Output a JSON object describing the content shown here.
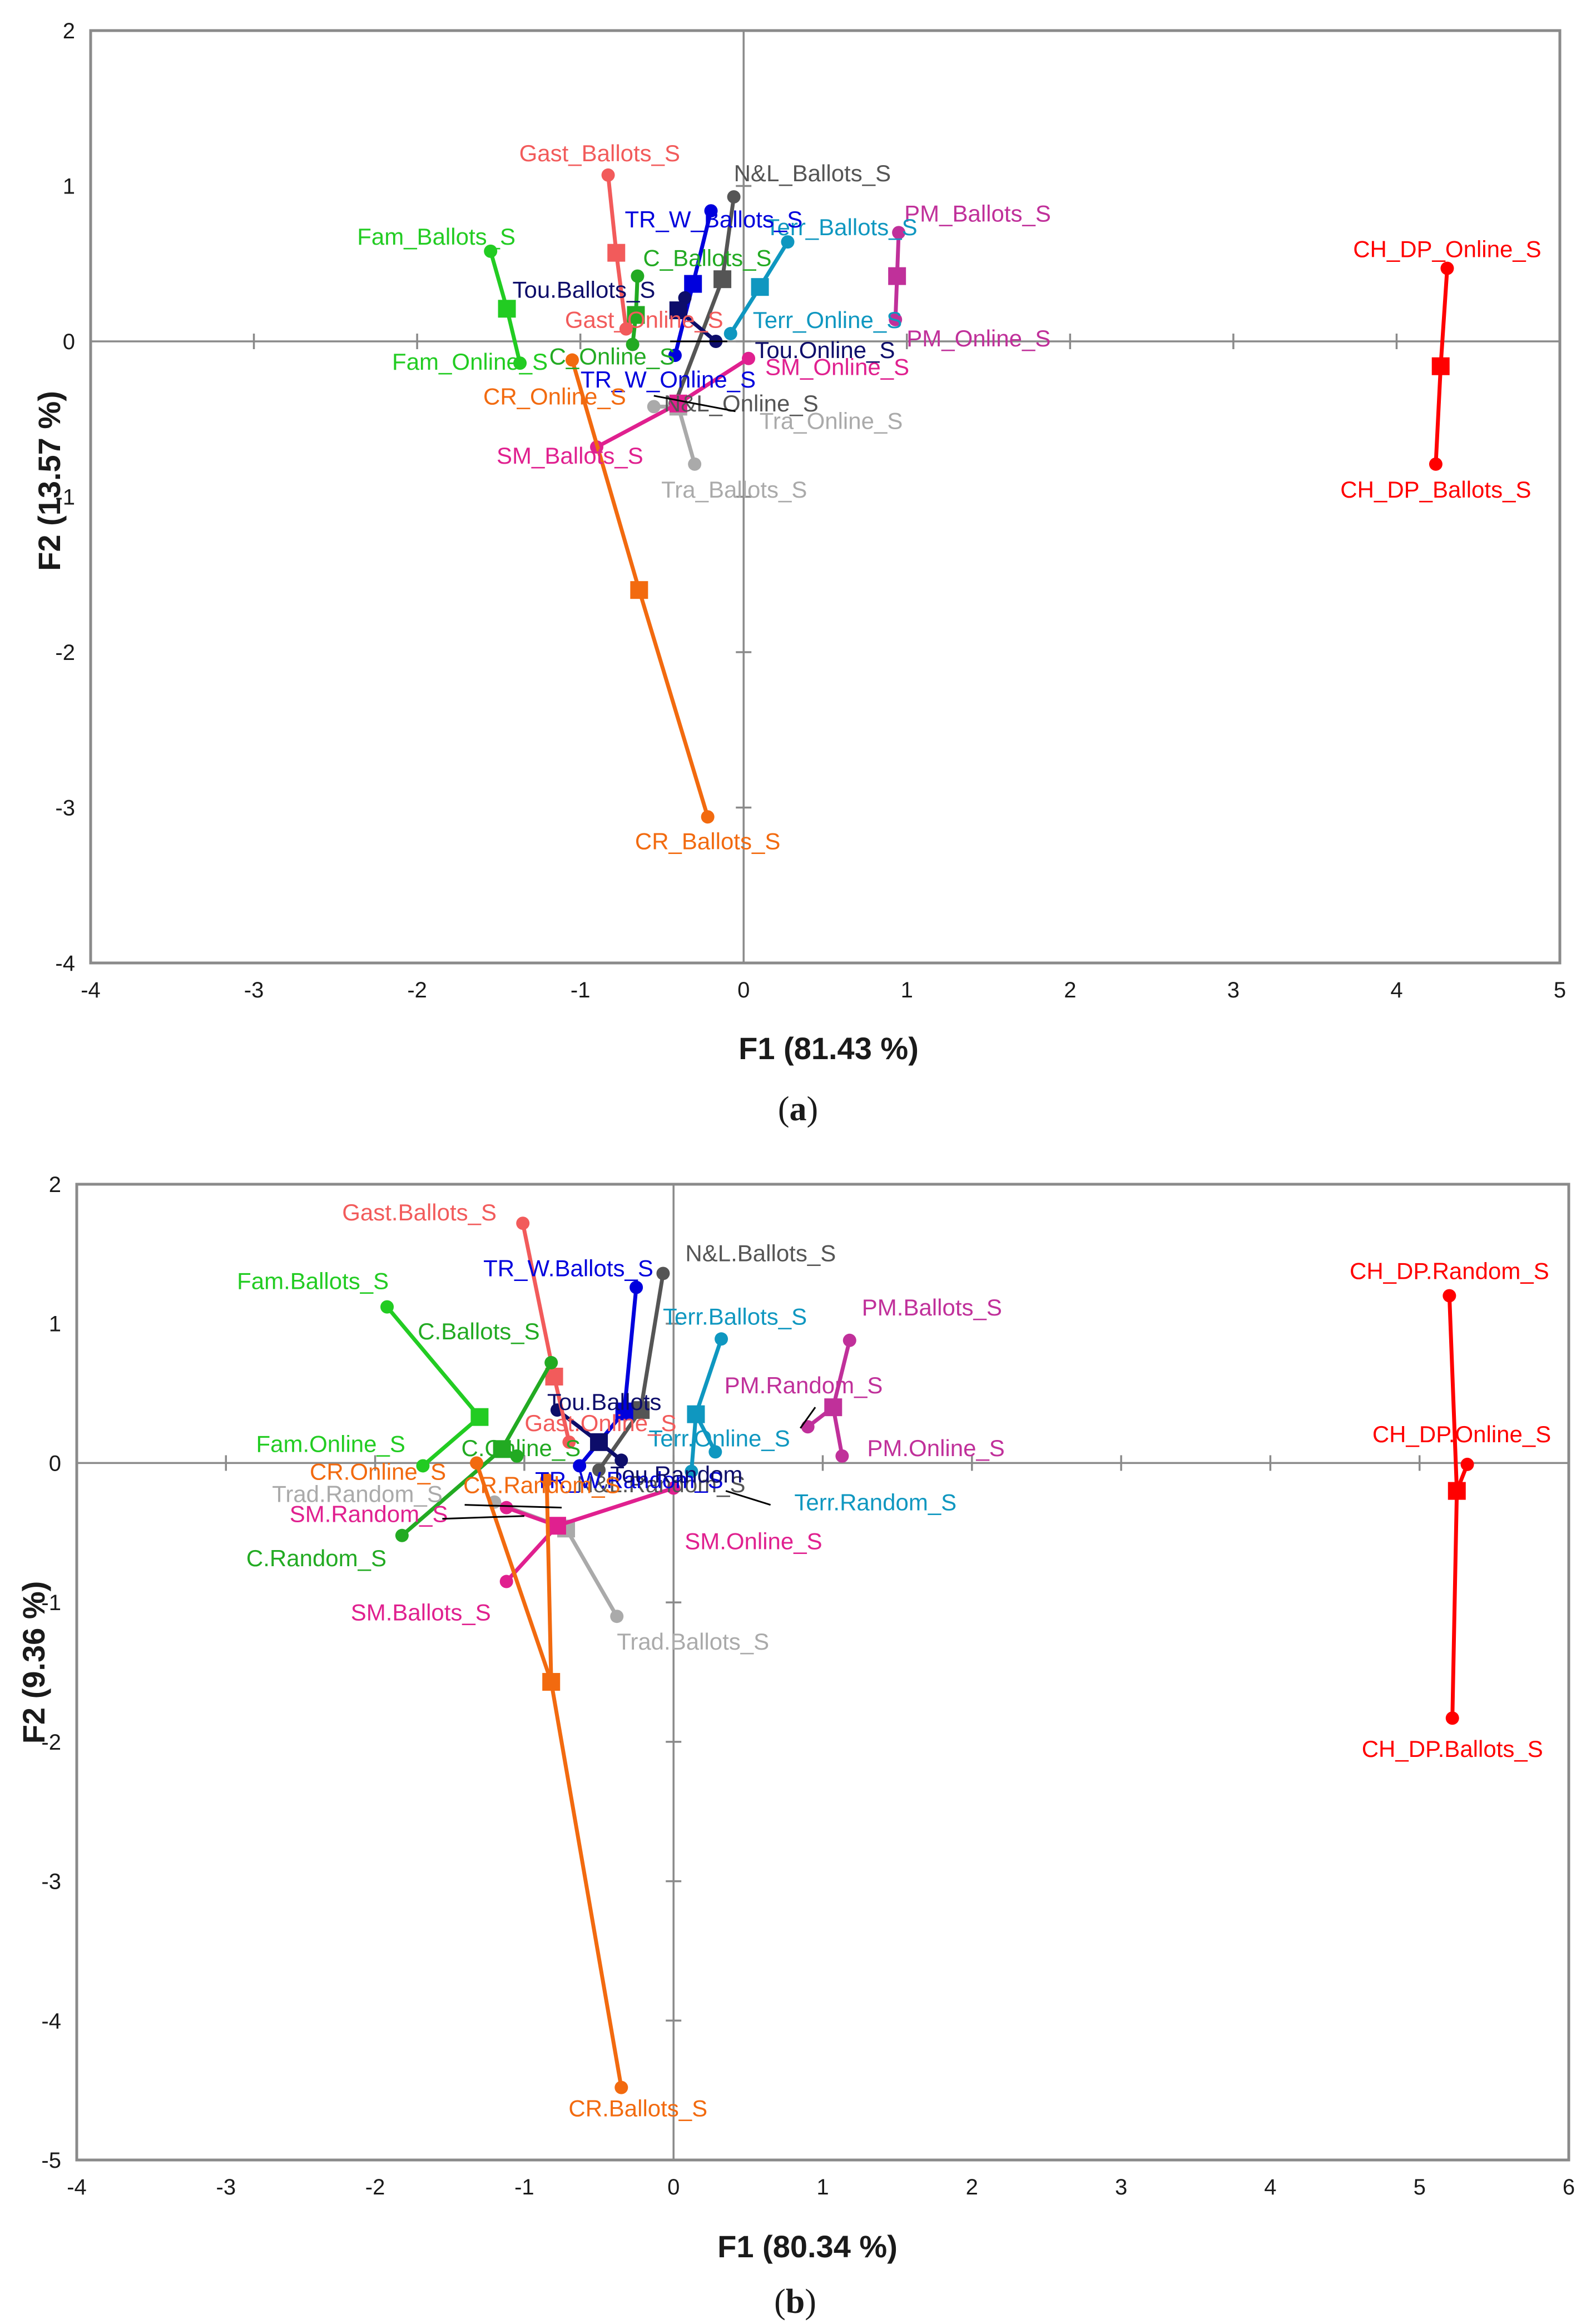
{
  "chart_data": [
    {
      "type": "scatter",
      "panel_label": "a",
      "xlabel": "F1 (81.43 %)",
      "ylabel": "F2 (13.57 %)",
      "xlim": [
        -4,
        5
      ],
      "ylim": [
        -4,
        2
      ],
      "xticks": [
        "-4",
        "-3",
        "-2",
        "-1",
        "0",
        "1",
        "2",
        "3",
        "4",
        "5"
      ],
      "yticks": [
        "-4",
        "-3",
        "-2",
        "-1",
        "0",
        "1",
        "2"
      ],
      "grid": false,
      "groups": [
        {
          "name": "CH_DP",
          "color": "#ff0000",
          "centroid": [
            4.27,
            -0.16
          ],
          "points": [
            {
              "label": "CH_DP_Online_S",
              "x": 4.31,
              "y": 0.47
            },
            {
              "label": "CH_DP_Ballots_S",
              "x": 4.24,
              "y": -0.79
            }
          ]
        },
        {
          "name": "PM",
          "color": "#c0309a",
          "centroid": [
            0.94,
            0.42
          ],
          "points": [
            {
              "label": "PM_Ballots_S",
              "x": 0.95,
              "y": 0.7
            },
            {
              "label": "PM_Online_S",
              "x": 0.93,
              "y": 0.14
            }
          ]
        },
        {
          "name": "Terr",
          "color": "#0f97c0",
          "centroid": [
            0.1,
            0.35
          ],
          "points": [
            {
              "label": "Terr_Ballots_S",
              "x": 0.27,
              "y": 0.64
            },
            {
              "label": "Terr_Online_S",
              "x": -0.08,
              "y": 0.05
            }
          ]
        },
        {
          "name": "N&L",
          "color": "#555555",
          "centroid": [
            -0.13,
            0.4
          ],
          "points": [
            {
              "label": "N&L_Ballots_S",
              "x": -0.06,
              "y": 0.93
            },
            {
              "label": "N&L_Online_S",
              "x": -0.42,
              "y": -0.4
            }
          ]
        },
        {
          "name": "TR_W",
          "color": "#0000dd",
          "centroid": [
            -0.31,
            0.37
          ],
          "points": [
            {
              "label": "TR_W_Ballots_S",
              "x": -0.2,
              "y": 0.84
            },
            {
              "label": "TR_W_Online_S",
              "x": -0.42,
              "y": -0.09
            }
          ]
        },
        {
          "name": "Tou",
          "color": "#0d0d6a",
          "centroid": [
            -0.4,
            0.2
          ],
          "points": [
            {
              "label": "Tou.Ballots_S",
              "x": -0.36,
              "y": 0.28
            },
            {
              "label": "Tou.Online_S",
              "x": -0.17,
              "y": 0.0
            }
          ]
        },
        {
          "name": "Tra",
          "color": "#aaaaaa",
          "centroid": [
            -0.4,
            -0.42
          ],
          "points": [
            {
              "label": "Tra_Online_S",
              "x": -0.55,
              "y": -0.42
            },
            {
              "label": "Tra_Ballots_S",
              "x": -0.3,
              "y": -0.79
            }
          ]
        },
        {
          "name": "C",
          "color": "#22aa22",
          "centroid": [
            -0.66,
            0.17
          ],
          "points": [
            {
              "label": "C_Ballots_S",
              "x": -0.65,
              "y": 0.42
            },
            {
              "label": "C_Online_S",
              "x": -0.68,
              "y": -0.02
            }
          ]
        },
        {
          "name": "Gast",
          "color": "#f25b5b",
          "centroid": [
            -0.78,
            0.57
          ],
          "points": [
            {
              "label": "Gast_Ballots_S",
              "x": -0.83,
              "y": 1.07
            },
            {
              "label": "Gast_Online_S",
              "x": -0.72,
              "y": 0.08
            }
          ]
        },
        {
          "name": "Fam",
          "color": "#22cc22",
          "centroid": [
            -1.45,
            0.21
          ],
          "points": [
            {
              "label": "Fam_Ballots_S",
              "x": -1.55,
              "y": 0.58
            },
            {
              "label": "Fam_Online_S",
              "x": -1.37,
              "y": -0.14
            }
          ]
        },
        {
          "name": "SM",
          "color": "#e0208f",
          "centroid": [
            -0.4,
            -0.4
          ],
          "points": [
            {
              "label": "SM_Online_S",
              "x": 0.03,
              "y": -0.11
            },
            {
              "label": "SM_Ballots_S",
              "x": -0.9,
              "y": -0.68
            }
          ]
        },
        {
          "name": "CR",
          "color": "#f26a0f",
          "centroid": [
            -0.64,
            -1.6
          ],
          "points": [
            {
              "label": "CR_Online_S",
              "x": -1.05,
              "y": -0.12
            },
            {
              "label": "CR_Ballots_S",
              "x": -0.22,
              "y": -3.06
            }
          ]
        }
      ]
    },
    {
      "type": "scatter",
      "panel_label": "b",
      "xlabel": "F1 (80.34 %)",
      "ylabel": "F2 (9.36 %)",
      "xlim": [
        -4,
        6
      ],
      "ylim": [
        -5,
        2
      ],
      "xticks": [
        "-4",
        "-3",
        "-2",
        "-1",
        "0",
        "1",
        "2",
        "3",
        "4",
        "5",
        "6"
      ],
      "yticks": [
        "-5",
        "-4",
        "-3",
        "-2",
        "-1",
        "0",
        "1",
        "2"
      ],
      "grid": false,
      "groups": [
        {
          "name": "CH_DP",
          "color": "#ff0000",
          "centroid": [
            5.25,
            -0.2
          ],
          "points": [
            {
              "label": "CH_DP.Random_S",
              "x": 5.2,
              "y": 1.2
            },
            {
              "label": "CH_DP.Online_S",
              "x": 5.32,
              "y": -0.01
            },
            {
              "label": "CH_DP.Ballots_S",
              "x": 5.22,
              "y": -1.83
            }
          ]
        },
        {
          "name": "PM",
          "color": "#c0309a",
          "centroid": [
            1.07,
            0.4
          ],
          "points": [
            {
              "label": "PM.Ballots_S",
              "x": 1.18,
              "y": 0.88
            },
            {
              "label": "PM.Random_S",
              "x": 0.9,
              "y": 0.26
            },
            {
              "label": "PM.Online_S",
              "x": 1.13,
              "y": 0.05
            }
          ]
        },
        {
          "name": "Terr",
          "color": "#0f97c0",
          "centroid": [
            0.15,
            0.35
          ],
          "points": [
            {
              "label": "Terr.Ballots_S",
              "x": 0.32,
              "y": 0.89
            },
            {
              "label": "Terr.Online_S",
              "x": 0.28,
              "y": 0.08
            },
            {
              "label": "Terr.Random_S",
              "x": 0.12,
              "y": -0.06
            }
          ]
        },
        {
          "name": "N&L",
          "color": "#555555",
          "centroid": [
            -0.22,
            0.38
          ],
          "points": [
            {
              "label": "N&L.Ballots_S",
              "x": -0.07,
              "y": 1.36
            },
            {
              "label": "N&L.Random_S",
              "x": -0.5,
              "y": -0.05
            }
          ]
        },
        {
          "name": "TR_W",
          "color": "#0000dd",
          "centroid": [
            -0.33,
            0.37
          ],
          "points": [
            {
              "label": "TR_W.Ballots_S",
              "x": -0.25,
              "y": 1.26
            },
            {
              "label": "TR_W.Random_S",
              "x": -0.63,
              "y": -0.02
            }
          ]
        },
        {
          "name": "Tou",
          "color": "#0d0d6a",
          "centroid": [
            -0.5,
            0.15
          ],
          "points": [
            {
              "label": "Tou.Ballots",
              "x": -0.78,
              "y": 0.38
            },
            {
              "label": "Tou.Random",
              "x": -0.35,
              "y": 0.02
            }
          ]
        },
        {
          "name": "Gast",
          "color": "#f25b5b",
          "centroid": [
            -0.8,
            0.62
          ],
          "points": [
            {
              "label": "Gast.Ballots_S",
              "x": -1.01,
              "y": 1.72
            },
            {
              "label": "Gast.Online_S",
              "x": -0.7,
              "y": 0.15
            }
          ]
        },
        {
          "name": "C",
          "color": "#22aa22",
          "centroid": [
            -1.15,
            0.1
          ],
          "points": [
            {
              "label": "C.Ballots_S",
              "x": -0.82,
              "y": 0.72
            },
            {
              "label": "C.Online_S",
              "x": -1.05,
              "y": 0.05
            },
            {
              "label": "C.Random_S",
              "x": -1.82,
              "y": -0.52
            }
          ]
        },
        {
          "name": "Fam",
          "color": "#22cc22",
          "centroid": [
            -1.3,
            0.33
          ],
          "points": [
            {
              "label": "Fam.Ballots_S",
              "x": -1.92,
              "y": 1.12
            },
            {
              "label": "Fam.Online_S",
              "x": -1.68,
              "y": -0.02
            }
          ]
        },
        {
          "name": "Trad",
          "color": "#aaaaaa",
          "centroid": [
            -0.72,
            -0.47
          ],
          "points": [
            {
              "label": "Trad.Random_S",
              "x": -1.2,
              "y": -0.28
            },
            {
              "label": "Trad.Ballots_S",
              "x": -0.38,
              "y": -1.1
            }
          ]
        },
        {
          "name": "SM",
          "color": "#e0208f",
          "centroid": [
            -0.78,
            -0.45
          ],
          "points": [
            {
              "label": "SM.Online_S",
              "x": 0.0,
              "y": -0.18
            },
            {
              "label": "SM.Random_S",
              "x": -1.12,
              "y": -0.32
            },
            {
              "label": "SM.Ballots_S",
              "x": -1.12,
              "y": -0.85
            }
          ]
        },
        {
          "name": "CR",
          "color": "#f26a0f",
          "centroid": [
            -0.82,
            -1.57
          ],
          "points": [
            {
              "label": "CR.Online_S",
              "x": -1.32,
              "y": 0.0
            },
            {
              "label": "CR.Random_S",
              "x": -0.85,
              "y": -0.12
            },
            {
              "label": "CR.Ballots_S",
              "x": -0.35,
              "y": -4.48
            }
          ]
        }
      ]
    }
  ]
}
